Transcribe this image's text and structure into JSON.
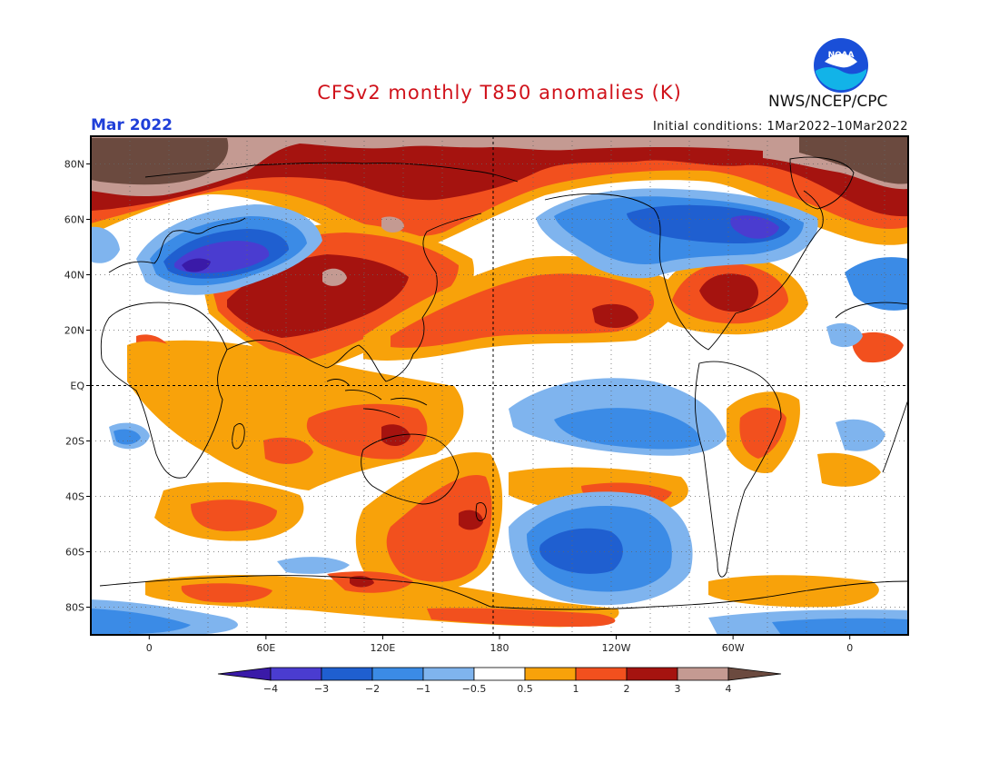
{
  "header": {
    "title": "CFSv2 monthly T850 anomalies (K)",
    "month": "Mar 2022",
    "initial_conditions": "Initial conditions: 1Mar2022–10Mar2022",
    "agency": "NWS/NCEP/CPC",
    "logo_text": "NOAA"
  },
  "colors": {
    "title": "#d0121b",
    "month": "#1f3fd8",
    "anomaly_palette": {
      "lt_-4": "#3a1aa8",
      "-4_-3": "#4a3cd0",
      "-3_-2": "#1f5fd0",
      "-2_-1": "#3b8be6",
      "-1_-0.5": "#7fb4ee",
      "-0.5_0.5": "#ffffff",
      "0.5_1": "#f8a20a",
      "1_2": "#f2501e",
      "2_3": "#a5130f",
      "3_4": "#c49a92",
      "gt_4": "#6b4a3f"
    }
  },
  "map": {
    "projection": "equirectangular",
    "lon_range": [
      -30,
      390
    ],
    "lat_range": [
      -90,
      90
    ],
    "lon_ticks": [
      {
        "lon": 0,
        "label": "0"
      },
      {
        "lon": 60,
        "label": "60E"
      },
      {
        "lon": 120,
        "label": "120E"
      },
      {
        "lon": 180,
        "label": "180"
      },
      {
        "lon": 240,
        "label": "120W"
      },
      {
        "lon": 300,
        "label": "60W"
      },
      {
        "lon": 360,
        "label": "0"
      }
    ],
    "lat_ticks": [
      {
        "lat": 80,
        "label": "80N"
      },
      {
        "lat": 60,
        "label": "60N"
      },
      {
        "lat": 40,
        "label": "40N"
      },
      {
        "lat": 20,
        "label": "20N"
      },
      {
        "lat": 0,
        "label": "EQ"
      },
      {
        "lat": -20,
        "label": "20S"
      },
      {
        "lat": -40,
        "label": "40S"
      },
      {
        "lat": -60,
        "label": "60S"
      },
      {
        "lat": -80,
        "label": "80S"
      }
    ]
  },
  "legend": {
    "bins": [
      "<-4",
      "-4..-3",
      "-3..-2",
      "-2..-1",
      "-1..-0.5",
      "-0.5..0.5",
      "0.5..1",
      "1..2",
      "2..3",
      "3..4",
      ">4"
    ],
    "labels": [
      "−4",
      "−3",
      "−2",
      "−1",
      "−0.5",
      "0.5",
      "1",
      "2",
      "3",
      "4"
    ]
  }
}
